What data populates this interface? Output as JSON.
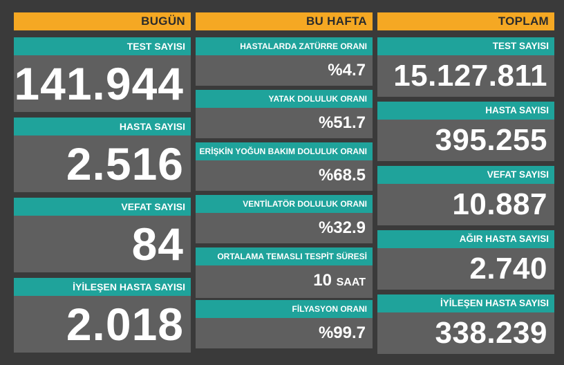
{
  "today": {
    "header": "BUGÜN",
    "cards": [
      {
        "label": "TEST SAYISI",
        "value": "141.944"
      },
      {
        "label": "HASTA SAYISI",
        "value": "2.516"
      },
      {
        "label": "VEFAT SAYISI",
        "value": "84"
      },
      {
        "label": "İYİLEŞEN HASTA SAYISI",
        "value": "2.018"
      }
    ]
  },
  "week": {
    "header": "BU HAFTA",
    "cards": [
      {
        "label": "HASTALARDA ZATÜRRE ORANI",
        "value": "%4.7"
      },
      {
        "label": "YATAK DOLULUK ORANI",
        "value": "%51.7"
      },
      {
        "label": "ERİŞKİN YOĞUN BAKIM DOLULUK ORANI",
        "value": "%68.5"
      },
      {
        "label": "VENTİLATÖR DOLULUK ORANI",
        "value": "%32.9"
      },
      {
        "label": "ORTALAMA TEMASLI TESPİT SÜRESİ",
        "value": "10",
        "unit": "SAAT"
      },
      {
        "label": "FİLYASYON ORANI",
        "value": "%99.7"
      }
    ]
  },
  "total": {
    "header": "TOPLAM",
    "cards": [
      {
        "label": "TEST SAYISI",
        "value": "15.127.811"
      },
      {
        "label": "HASTA SAYISI",
        "value": "395.255"
      },
      {
        "label": "VEFAT SAYISI",
        "value": "10.887"
      },
      {
        "label": "AĞIR HASTA SAYISI",
        "value": "2.740"
      },
      {
        "label": "İYİLEŞEN HASTA SAYISI",
        "value": "338.239"
      }
    ]
  }
}
